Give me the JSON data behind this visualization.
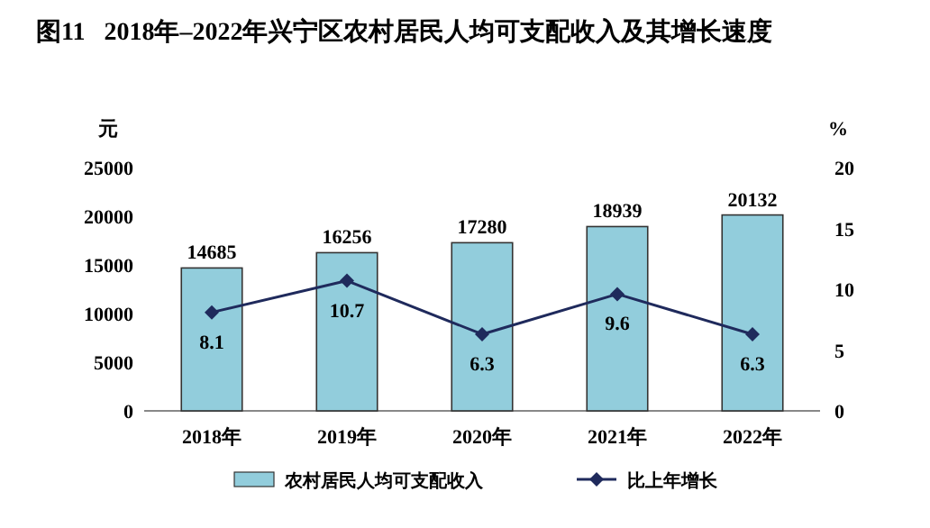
{
  "chart_data": {
    "type": "bar",
    "title": "图11   2018年–2022年兴宁区农村居民人均可支配收入及其增长速度",
    "ylabel": "元",
    "y2label": "%",
    "categories": [
      "2018年",
      "2019年",
      "2020年",
      "2021年",
      "2022年"
    ],
    "series": [
      {
        "name": "农村居民人均可支配收入",
        "color": "#92cddc",
        "values": [
          14685,
          16256,
          17280,
          18939,
          20132
        ]
      },
      {
        "name": "比上年增长",
        "type": "line",
        "axis": "y2",
        "color": "#1f2a5c",
        "marker": "diamond",
        "values": [
          8.1,
          10.7,
          6.3,
          9.6,
          6.3
        ]
      }
    ],
    "ylim": [
      0,
      25000
    ],
    "yticks": [
      0,
      5000,
      10000,
      15000,
      20000,
      25000
    ],
    "y2lim": [
      0,
      20
    ],
    "y2ticks": [
      0,
      5,
      10,
      15,
      20
    ],
    "data_labels": true,
    "legend": "bottom",
    "grid": false
  }
}
